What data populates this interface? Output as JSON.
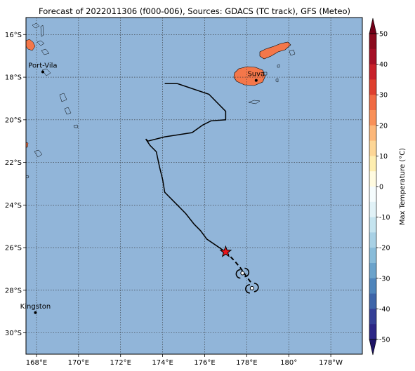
{
  "title": "Forecast of 2022011306 (f000-006), Sources: GDACS (TC track), GFS (Meteo)",
  "map": {
    "lon_range": [
      167.5,
      183.5
    ],
    "lat_range": [
      -31.0,
      -15.2
    ],
    "lon_ticks": [
      {
        "value": 168,
        "label": "168°E"
      },
      {
        "value": 170,
        "label": "170°E"
      },
      {
        "value": 172,
        "label": "172°E"
      },
      {
        "value": 174,
        "label": "174°E"
      },
      {
        "value": 176,
        "label": "176°E"
      },
      {
        "value": 178,
        "label": "178°E"
      },
      {
        "value": 180,
        "label": "180°"
      },
      {
        "value": 182,
        "label": "178°W"
      }
    ],
    "lat_ticks": [
      {
        "value": -16,
        "label": "16°S"
      },
      {
        "value": -18,
        "label": "18°S"
      },
      {
        "value": -20,
        "label": "20°S"
      },
      {
        "value": -22,
        "label": "22°S"
      },
      {
        "value": -24,
        "label": "24°S"
      },
      {
        "value": -26,
        "label": "26°S"
      },
      {
        "value": -28,
        "label": "28°S"
      },
      {
        "value": -30,
        "label": "30°S"
      }
    ],
    "grid": true,
    "ocean_color": "#91b5d9",
    "land_color": "#f4774a",
    "cities": [
      {
        "name": "Port-Vila",
        "lon": 168.3,
        "lat": -17.75
      },
      {
        "name": "Suva",
        "lon": 178.45,
        "lat": -18.15
      },
      {
        "name": "Kingston",
        "lon": 167.95,
        "lat": -29.05
      }
    ],
    "track_observed": [
      [
        174.1,
        -18.3
      ],
      [
        174.7,
        -18.3
      ],
      [
        176.2,
        -18.8
      ],
      [
        177.0,
        -19.6
      ],
      [
        177.0,
        -20.0
      ],
      [
        176.3,
        -20.05
      ],
      [
        175.9,
        -20.25
      ],
      [
        175.4,
        -20.6
      ],
      [
        174.1,
        -20.8
      ],
      [
        173.3,
        -21.0
      ],
      [
        173.2,
        -20.9
      ],
      [
        173.4,
        -21.2
      ],
      [
        173.7,
        -21.5
      ],
      [
        173.85,
        -22.2
      ],
      [
        174.0,
        -22.8
      ],
      [
        174.1,
        -23.4
      ],
      [
        174.7,
        -24.0
      ],
      [
        175.1,
        -24.4
      ],
      [
        175.5,
        -24.9
      ],
      [
        175.8,
        -25.2
      ],
      [
        176.1,
        -25.6
      ],
      [
        177.0,
        -26.2
      ]
    ],
    "track_forecast": [
      [
        177.0,
        -26.2
      ],
      [
        177.4,
        -26.6
      ],
      [
        177.7,
        -26.95
      ],
      [
        177.95,
        -27.3
      ],
      [
        178.25,
        -27.7
      ]
    ],
    "current_position": {
      "lon": 177.0,
      "lat": -26.2,
      "marker": "red-star"
    },
    "forecast_positions": [
      {
        "lon": 177.8,
        "lat": -27.2
      },
      {
        "lon": 178.25,
        "lat": -27.9
      }
    ]
  },
  "colorbar": {
    "label": "Max Temperature (°C)",
    "ticks": [
      50,
      40,
      30,
      20,
      10,
      0,
      -10,
      -20,
      -30,
      -40,
      -50
    ],
    "levels": [
      {
        "from": 45,
        "to": 50,
        "color": "#8b0a1e"
      },
      {
        "from": 40,
        "to": 45,
        "color": "#a50f26"
      },
      {
        "from": 35,
        "to": 40,
        "color": "#c8202a"
      },
      {
        "from": 30,
        "to": 35,
        "color": "#de3f2e"
      },
      {
        "from": 25,
        "to": 30,
        "color": "#f06a43"
      },
      {
        "from": 20,
        "to": 25,
        "color": "#f99058"
      },
      {
        "from": 15,
        "to": 20,
        "color": "#fcb779"
      },
      {
        "from": 10,
        "to": 15,
        "color": "#fdd696"
      },
      {
        "from": 5,
        "to": 10,
        "color": "#feeeb0"
      },
      {
        "from": 0,
        "to": 5,
        "color": "#fffbe0"
      },
      {
        "from": -5,
        "to": 0,
        "color": "#f5fcfd"
      },
      {
        "from": -10,
        "to": -5,
        "color": "#e1f2f7"
      },
      {
        "from": -15,
        "to": -10,
        "color": "#c5e4ef"
      },
      {
        "from": -20,
        "to": -15,
        "color": "#a8d1e5"
      },
      {
        "from": -25,
        "to": -20,
        "color": "#89bcd9"
      },
      {
        "from": -30,
        "to": -25,
        "color": "#6ba3cb"
      },
      {
        "from": -35,
        "to": -30,
        "color": "#4f85bb"
      },
      {
        "from": -40,
        "to": -35,
        "color": "#3e65a9"
      },
      {
        "from": -45,
        "to": -40,
        "color": "#353f96"
      },
      {
        "from": -50,
        "to": -45,
        "color": "#2c2686"
      }
    ],
    "min_extend_color": "#1e1466",
    "max_extend_color": "#730018"
  }
}
